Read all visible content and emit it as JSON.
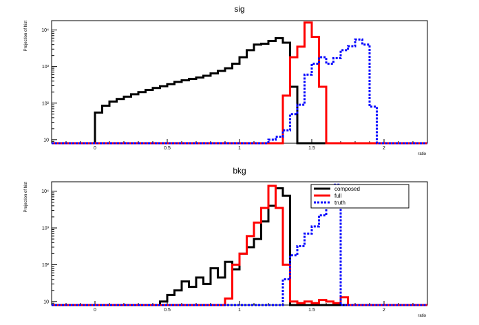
{
  "chart_data": [
    {
      "type": "histogram",
      "title": "sig",
      "xlabel": "ratio",
      "ylabel": "Projection of hist",
      "xlim": [
        -0.3,
        2.3
      ],
      "ylim": [
        8,
        18000
      ],
      "yscale": "log",
      "xticks": [
        "0",
        "0.5",
        "1",
        "1.5",
        "2"
      ],
      "yticks": [
        "10",
        "10²",
        "10³",
        "10⁴"
      ],
      "bin_edges": [
        -0.3,
        -0.25,
        -0.2,
        -0.15,
        -0.1,
        -0.05,
        0.0,
        0.05,
        0.1,
        0.15,
        0.2,
        0.25,
        0.3,
        0.35,
        0.4,
        0.45,
        0.5,
        0.55,
        0.6,
        0.65,
        0.7,
        0.75,
        0.8,
        0.85,
        0.9,
        0.95,
        1.0,
        1.05,
        1.1,
        1.15,
        1.2,
        1.25,
        1.3,
        1.35,
        1.4,
        1.45,
        1.5,
        1.55,
        1.6,
        1.65,
        1.7,
        1.75,
        1.8,
        1.85,
        1.9,
        1.95,
        2.0,
        2.05,
        2.1,
        2.15,
        2.2,
        2.25,
        2.3
      ],
      "series": [
        {
          "name": "composed",
          "color": "#000000",
          "dash": "solid",
          "values": [
            0,
            0,
            0,
            0,
            0,
            0,
            55,
            85,
            110,
            130,
            150,
            175,
            200,
            230,
            260,
            290,
            330,
            380,
            420,
            460,
            500,
            560,
            650,
            760,
            900,
            1200,
            1800,
            2800,
            4000,
            4200,
            5000,
            6000,
            4500,
            280,
            0,
            0,
            0,
            0,
            0,
            0,
            0,
            0,
            0,
            0,
            0,
            0,
            0,
            0,
            0,
            0,
            0,
            0
          ]
        },
        {
          "name": "full",
          "color": "#ff0000",
          "dash": "solid",
          "values": [
            0,
            0,
            0,
            0,
            0,
            0,
            0,
            0,
            0,
            0,
            0,
            0,
            0,
            0,
            0,
            0,
            0,
            0,
            0,
            0,
            0,
            0,
            0,
            0,
            0,
            0,
            0,
            0,
            0,
            0,
            0,
            0,
            160,
            1800,
            3500,
            16000,
            6500,
            280,
            0,
            0,
            0,
            0,
            0,
            0,
            0,
            0,
            0,
            0,
            0,
            0,
            0,
            0
          ]
        },
        {
          "name": "truth",
          "color": "#0000ff",
          "dash": "dotted",
          "values": [
            0,
            0,
            0,
            0,
            0,
            0,
            0,
            0,
            0,
            0,
            0,
            0,
            0,
            0,
            0,
            0,
            0,
            0,
            0,
            0,
            0,
            0,
            0,
            0,
            0,
            0,
            0,
            0,
            0,
            0,
            10,
            12,
            18,
            50,
            90,
            600,
            1200,
            1800,
            1200,
            1700,
            2800,
            3600,
            5500,
            4000,
            80,
            0,
            0,
            0,
            0,
            0,
            0,
            0
          ]
        }
      ]
    },
    {
      "type": "histogram",
      "title": "bkg",
      "xlabel": "ratio",
      "ylabel": "Projection of hist",
      "xlim": [
        -0.3,
        2.3
      ],
      "ylim": [
        8,
        18000
      ],
      "yscale": "log",
      "xticks": [
        "0",
        "0.5",
        "1",
        "1.5",
        "2"
      ],
      "yticks": [
        "10",
        "10²",
        "10³",
        "10⁴"
      ],
      "legend": {
        "position": "top-right",
        "entries": [
          "composed",
          "full",
          "truth"
        ]
      },
      "bin_edges": [
        -0.3,
        -0.25,
        -0.2,
        -0.15,
        -0.1,
        -0.05,
        0.0,
        0.05,
        0.1,
        0.15,
        0.2,
        0.25,
        0.3,
        0.35,
        0.4,
        0.45,
        0.5,
        0.55,
        0.6,
        0.65,
        0.7,
        0.75,
        0.8,
        0.85,
        0.9,
        0.95,
        1.0,
        1.05,
        1.1,
        1.15,
        1.2,
        1.25,
        1.3,
        1.35,
        1.4,
        1.45,
        1.5,
        1.55,
        1.6,
        1.65,
        1.7,
        1.75,
        1.8,
        1.85,
        1.9,
        1.95,
        2.0,
        2.05,
        2.1,
        2.15,
        2.2,
        2.25,
        2.3
      ],
      "series": [
        {
          "name": "composed",
          "color": "#000000",
          "dash": "solid",
          "values": [
            0,
            0,
            0,
            0,
            0,
            0,
            0,
            0,
            0,
            0,
            0,
            0,
            0,
            0,
            0,
            10,
            15,
            20,
            35,
            25,
            45,
            30,
            80,
            45,
            120,
            75,
            200,
            300,
            500,
            1500,
            4000,
            12000,
            7500,
            0,
            0,
            0,
            0,
            0,
            0,
            0,
            0,
            0,
            0,
            0,
            0,
            0,
            0,
            0,
            0,
            0,
            0,
            0
          ]
        },
        {
          "name": "full",
          "color": "#ff0000",
          "dash": "solid",
          "values": [
            0,
            0,
            0,
            0,
            0,
            0,
            0,
            0,
            0,
            0,
            0,
            0,
            0,
            0,
            0,
            0,
            0,
            0,
            0,
            0,
            0,
            0,
            0,
            0,
            12,
            100,
            200,
            600,
            1400,
            3500,
            14000,
            3500,
            100,
            10,
            9,
            10,
            9,
            11,
            10,
            9,
            13,
            0,
            0,
            0,
            0,
            0,
            0,
            0,
            0,
            0,
            0,
            0
          ]
        },
        {
          "name": "truth",
          "color": "#0000ff",
          "dash": "dotted",
          "values": [
            0,
            0,
            0,
            0,
            0,
            0,
            0,
            0,
            0,
            0,
            0,
            0,
            0,
            0,
            0,
            0,
            0,
            0,
            0,
            0,
            0,
            0,
            0,
            0,
            0,
            0,
            0,
            0,
            0,
            0,
            0,
            0,
            40,
            180,
            320,
            700,
            1100,
            2200,
            5000,
            15000,
            0,
            0,
            0,
            0,
            0,
            0,
            0,
            0,
            0,
            0,
            0,
            0
          ]
        }
      ]
    }
  ]
}
